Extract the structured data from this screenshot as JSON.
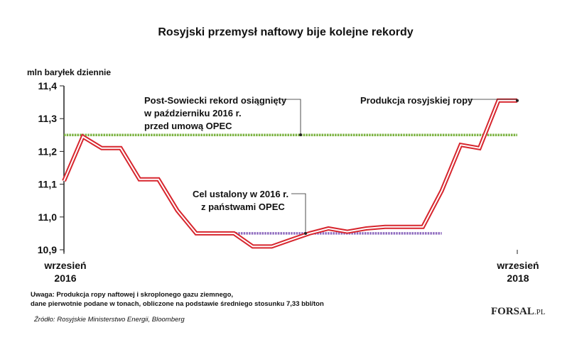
{
  "chart_data": {
    "type": "line",
    "title": "Rosyjski przemysł naftowy bije kolejne rekordy",
    "ylabel": "mln baryłek dziennie",
    "ylim": [
      10.9,
      11.4
    ],
    "y_ticks": [
      "11,4",
      "11,3",
      "11,2",
      "11,1",
      "11,0",
      "10,9"
    ],
    "y_tick_values": [
      11.4,
      11.3,
      11.2,
      11.1,
      11.0,
      10.9
    ],
    "x_tick_labels": [
      {
        "line1": "wrzesień",
        "line2": "2016"
      },
      {
        "line1": "wrzesień",
        "line2": "2018"
      }
    ],
    "grid": false,
    "series": [
      {
        "name": "Produkcja rosyjskiej ropy",
        "color": "#d7262e",
        "x": [
          0,
          1,
          2,
          3,
          4,
          5,
          6,
          7,
          8,
          9,
          10,
          11,
          12,
          13,
          14,
          15,
          16,
          17,
          18,
          19,
          20,
          21,
          22,
          23,
          24
        ],
        "values": [
          11.11,
          11.245,
          11.21,
          11.21,
          11.115,
          11.115,
          11.02,
          10.95,
          10.95,
          10.95,
          10.91,
          10.91,
          10.93,
          10.95,
          10.965,
          10.955,
          10.965,
          10.97,
          10.97,
          10.97,
          11.08,
          11.22,
          11.21,
          11.355,
          11.355
        ]
      }
    ],
    "reference_lines": [
      {
        "value": 11.25,
        "color": "#7cb342",
        "x_start": 0,
        "x_end": 24
      },
      {
        "value": 10.95,
        "color": "#8e6bbf",
        "x_start": 7,
        "x_end": 20
      }
    ],
    "annotations": [
      {
        "lines": [
          "Post-Sowiecki rekord osiągnięty",
          "w październiku 2016 r.",
          "przed umową OPEC"
        ]
      },
      {
        "lines": [
          "Cel ustalony w 2016 r.",
          "z państwami OPEC"
        ]
      },
      {
        "lines": [
          "Produkcja rosyjskiej ropy"
        ]
      }
    ],
    "note": [
      "Uwaga: Produkcja ropy naftowej i skroplonego gazu ziemnego,",
      "dane pierwotnie podane w tonach, obliczone na podstawie średniego stosunku 7,33 bbl/ton"
    ],
    "source": "Źródło: Rosyjskie Ministerstwo Energii, Bloomberg",
    "logo": {
      "main": "F",
      "highlight": "O",
      "rest": "RSAL",
      "suffix": ".PL",
      "accent": "#d7262e"
    }
  }
}
